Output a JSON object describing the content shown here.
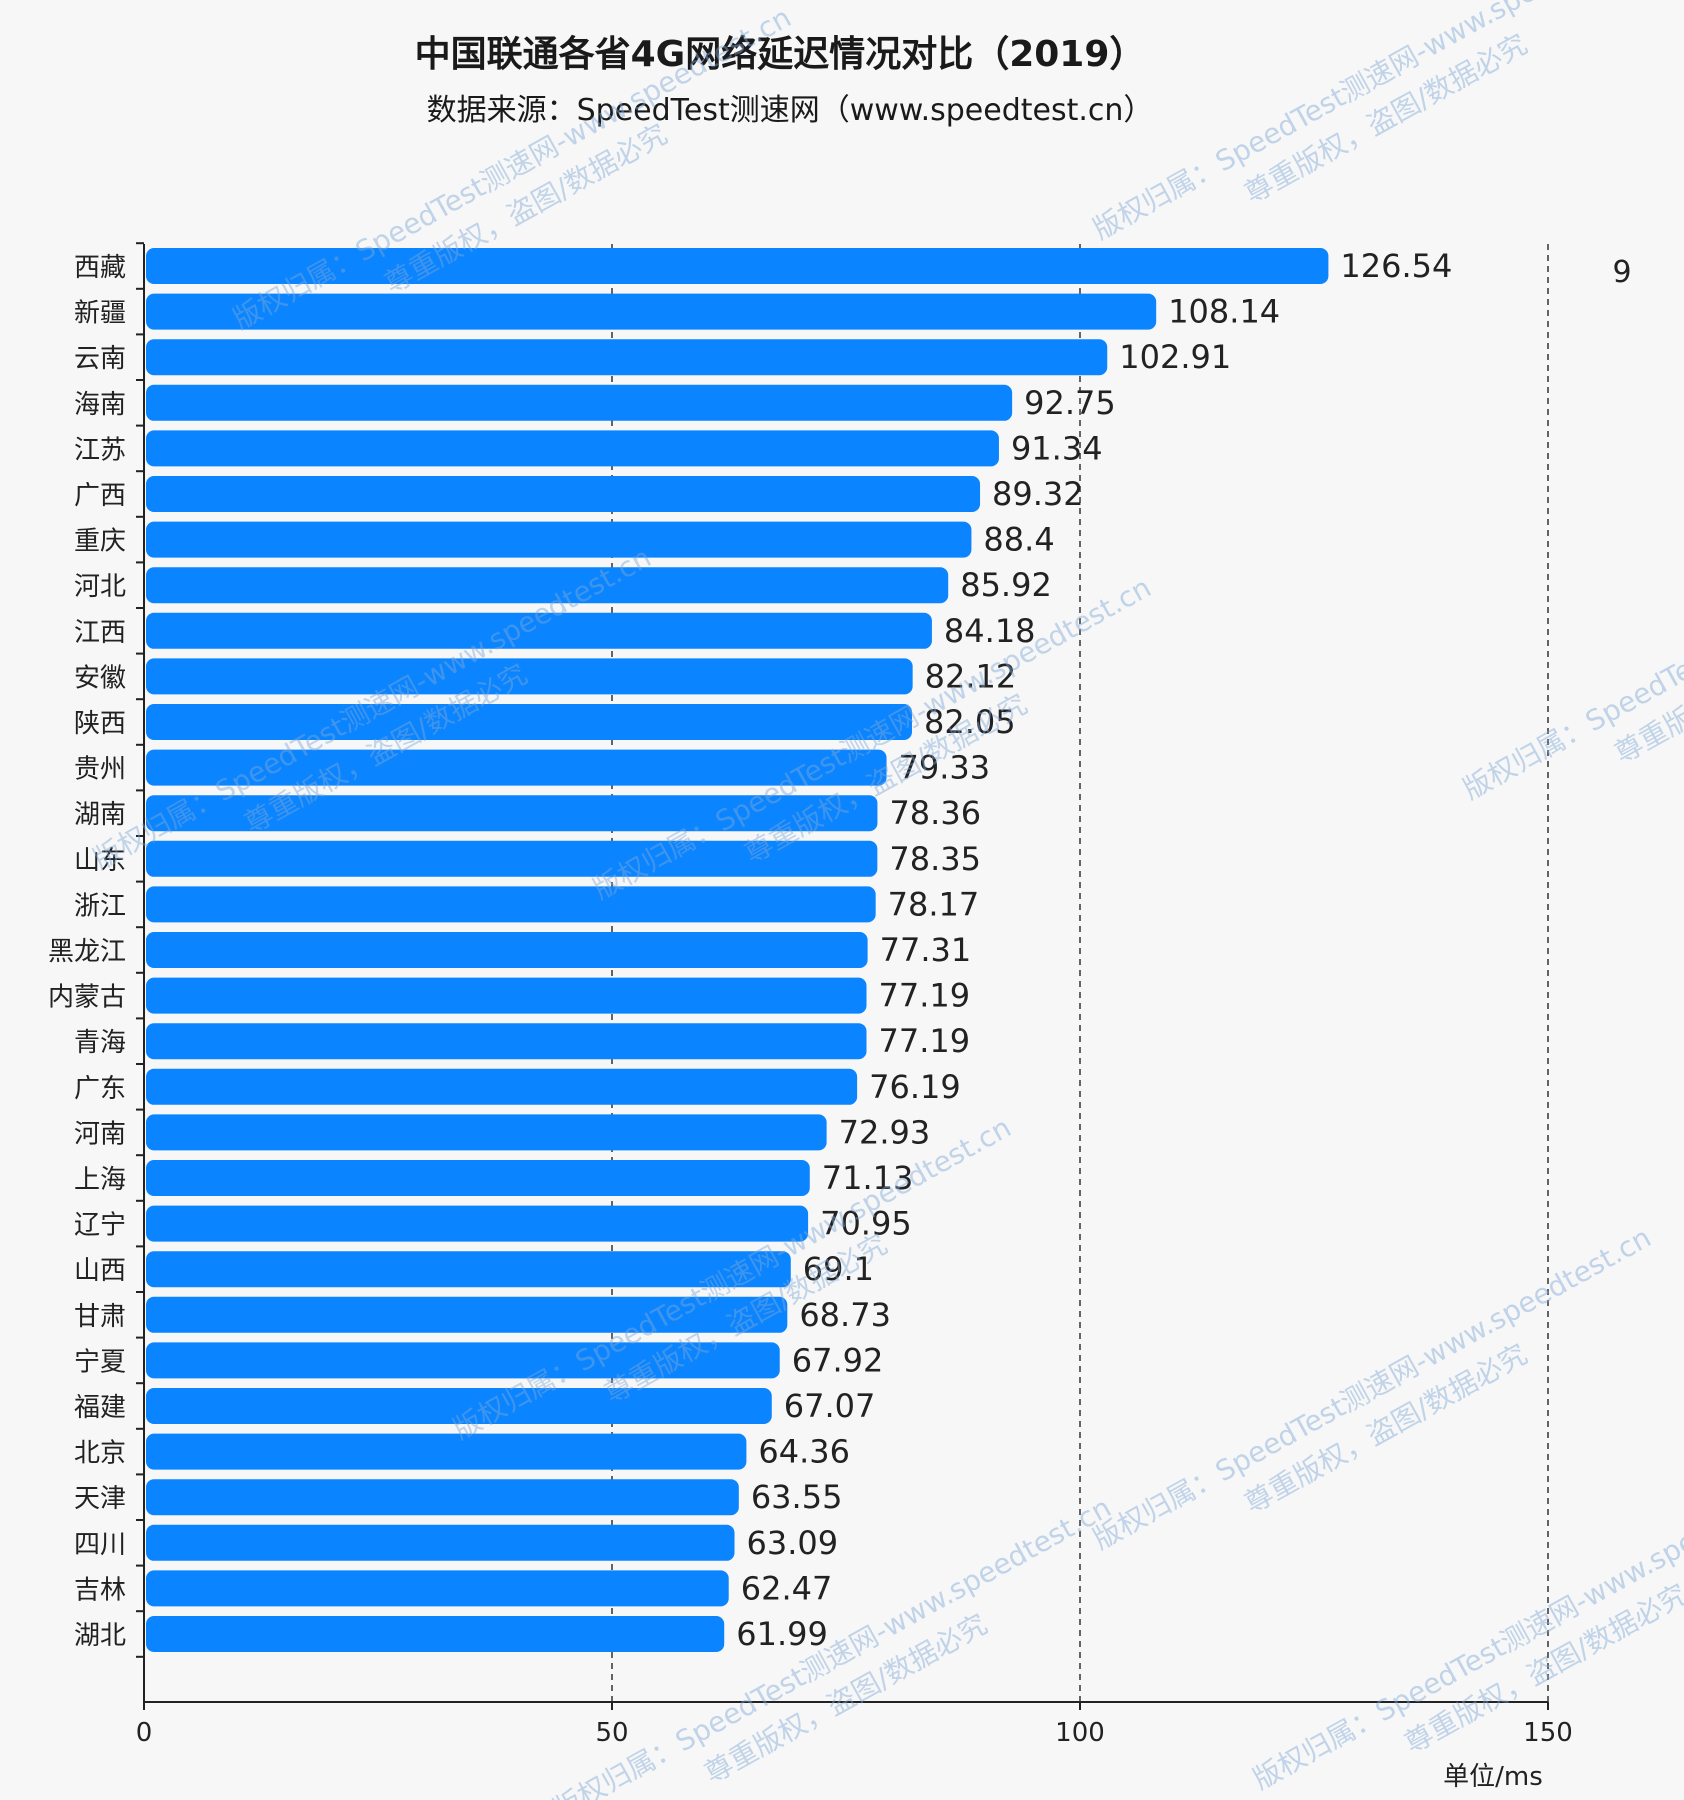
{
  "chart_data": {
    "type": "bar",
    "orientation": "horizontal",
    "title": "中国联通各省4G网络延迟情况对比（2019）",
    "subtitle": "数据来源：SpeedTest测速网（www.speedtest.cn）",
    "categories": [
      "西藏",
      "新疆",
      "云南",
      "海南",
      "江苏",
      "广西",
      "重庆",
      "河北",
      "江西",
      "安徽",
      "陕西",
      "贵州",
      "湖南",
      "山东",
      "浙江",
      "黑龙江",
      "内蒙古",
      "青海",
      "广东",
      "河南",
      "上海",
      "辽宁",
      "山西",
      "甘肃",
      "宁夏",
      "福建",
      "北京",
      "天津",
      "四川",
      "吉林",
      "湖北"
    ],
    "values": [
      126.54,
      108.14,
      102.91,
      92.75,
      91.34,
      89.32,
      88.4,
      85.92,
      84.18,
      82.12,
      82.05,
      79.33,
      78.36,
      78.35,
      78.17,
      77.31,
      77.19,
      77.19,
      76.19,
      72.93,
      71.13,
      70.95,
      69.1,
      68.73,
      67.92,
      67.07,
      64.36,
      63.55,
      63.09,
      62.47,
      61.99
    ],
    "value_labels": [
      "126.54",
      "108.14",
      "102.91",
      "92.75",
      "91.34",
      "89.32",
      "88.4",
      "85.92",
      "84.18",
      "82.12",
      "82.05",
      "79.33",
      "78.36",
      "78.35",
      "78.17",
      "77.31",
      "77.19",
      "77.19",
      "76.19",
      "72.93",
      "71.13",
      "70.95",
      "69.1",
      "68.73",
      "67.92",
      "67.07",
      "64.36",
      "63.55",
      "63.09",
      "62.47",
      "61.99"
    ],
    "xlim": [
      0,
      150
    ],
    "xticks": [
      "0",
      "50",
      "100",
      "150"
    ],
    "xlabel": "单位/ms",
    "grid": "vertical dashed",
    "bar_color": "#0a84ff",
    "stray_label": "9"
  },
  "watermarks": [
    {
      "line1": "版权归属：SpeedTest测速网-www.speedtest.cn",
      "line2": "尊重版权，盗图/数据必究"
    }
  ]
}
